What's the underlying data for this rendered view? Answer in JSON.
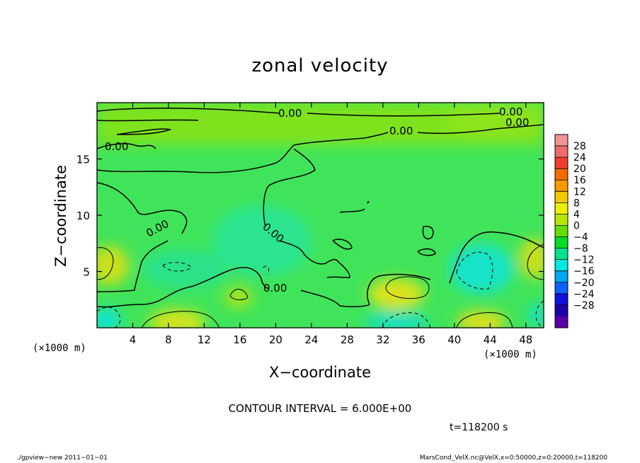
{
  "chart_data": {
    "type": "heatmap",
    "title": "zonal velocity",
    "xlabel": "X−coordinate",
    "ylabel": "Z−coordinate",
    "x_unit": "(×1000 m)",
    "xlim": [
      0,
      50
    ],
    "ylim": [
      0,
      20
    ],
    "x_ticks": [
      4,
      8,
      12,
      16,
      20,
      24,
      28,
      32,
      36,
      40,
      44,
      48
    ],
    "y_ticks": [
      5,
      10,
      15
    ],
    "zero_contour_labels": [
      "0.00",
      "0.00",
      "0.00",
      "0.00",
      "0.00",
      "0.00",
      "0.00",
      "0.00"
    ],
    "colorbar": {
      "levels": [
        "28",
        "24",
        "20",
        "16",
        "12",
        "8",
        "4",
        "0",
        "−4",
        "−8",
        "−12",
        "−16",
        "−20",
        "−24",
        "−28"
      ],
      "colors": [
        "#f29494",
        "#ef6a6a",
        "#f03d2d",
        "#f56a00",
        "#f79a00",
        "#f2c800",
        "#eeee00",
        "#b8e600",
        "#66dd00",
        "#00dd22",
        "#00e090",
        "#00e8e0",
        "#00a8f0",
        "#1060ff",
        "#1010e0",
        "#2000a8",
        "#5a00a8"
      ]
    },
    "contour_interval": "CONTOUR INTERVAL = 6.000E+00",
    "time": "t=118200 s"
  },
  "footer": {
    "left": "./gpview−new  2011−01−01",
    "right": "MarsCond_VelX.nc@VelX,x=0:50000,z=0:20000,t=118200"
  }
}
